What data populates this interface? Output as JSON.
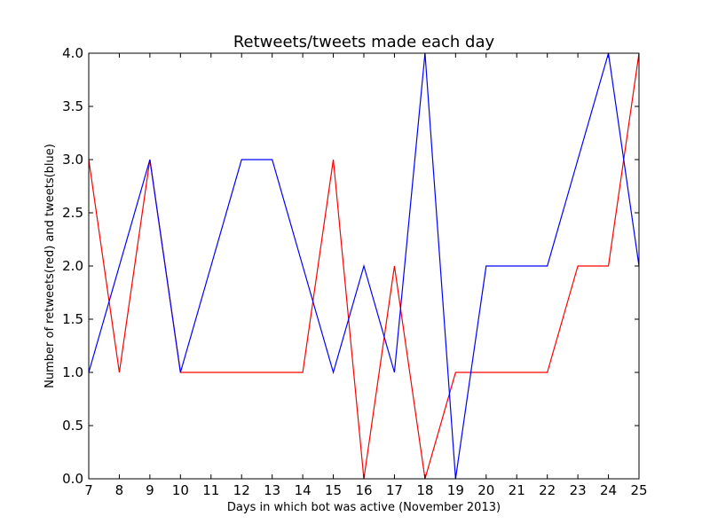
{
  "chart_data": {
    "type": "line",
    "title": "Retweets/tweets made each day",
    "xlabel": "Days in which bot was active (November 2013)",
    "ylabel": "Number of retweets(red) and tweets(blue)",
    "xlim": [
      7,
      25
    ],
    "ylim": [
      0,
      4
    ],
    "x_ticks": [
      7,
      8,
      9,
      10,
      11,
      12,
      13,
      14,
      15,
      16,
      17,
      18,
      19,
      20,
      21,
      22,
      23,
      24,
      25
    ],
    "x_tick_labels": [
      "7",
      "8",
      "9",
      "10",
      "11",
      "12",
      "13",
      "14",
      "15",
      "16",
      "17",
      "18",
      "19",
      "20",
      "21",
      "22",
      "23",
      "24",
      "25"
    ],
    "y_ticks": [
      0,
      0.5,
      1,
      1.5,
      2,
      2.5,
      3,
      3.5,
      4
    ],
    "y_tick_labels": [
      "0.0",
      "0.5",
      "1.0",
      "1.5",
      "2.0",
      "2.5",
      "3.0",
      "3.5",
      "4.0"
    ],
    "grid": false,
    "x": [
      7,
      8,
      9,
      10,
      11,
      12,
      13,
      14,
      15,
      16,
      17,
      18,
      19,
      20,
      21,
      22,
      23,
      24,
      25
    ],
    "series": [
      {
        "color": "#ff0000",
        "values": [
          3,
          1,
          3,
          1,
          1,
          1,
          1,
          1,
          3,
          0,
          2,
          0,
          1,
          1,
          1,
          1,
          2,
          2,
          4
        ]
      },
      {
        "color": "#0000ff",
        "values": [
          1,
          2,
          3,
          1,
          2,
          3,
          3,
          2,
          1,
          2,
          1,
          4,
          0,
          2,
          2,
          2,
          3,
          4,
          2
        ]
      }
    ]
  }
}
